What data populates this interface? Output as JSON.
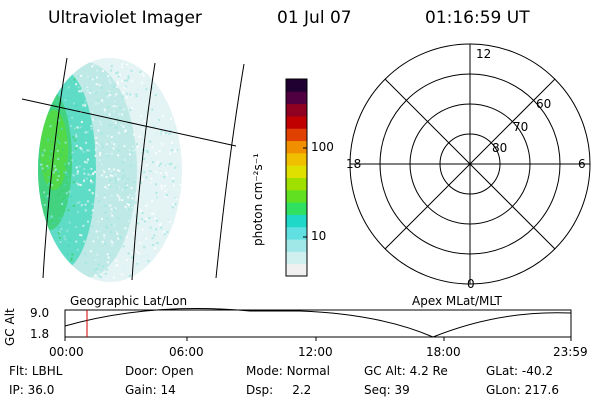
{
  "header": {
    "title": "Ultraviolet Imager",
    "date": "01 Jul 07",
    "time": "01:16:59 UT"
  },
  "colorbar": {
    "label": "photon cm⁻²s⁻¹",
    "ticks": [
      "100",
      "10"
    ],
    "colors": [
      "#f0f0f0",
      "#d0f0f0",
      "#a0e8e8",
      "#60e0e0",
      "#20d8c8",
      "#30e060",
      "#60e020",
      "#a0e000",
      "#e0e000",
      "#f0c000",
      "#f09000",
      "#e04000",
      "#c00000",
      "#900020",
      "#500040",
      "#200030"
    ]
  },
  "polar": {
    "clock_labels": [
      "12",
      "18",
      "6",
      "0"
    ],
    "lat_labels": [
      "60",
      "70",
      "80"
    ]
  },
  "panel_labels": {
    "left": "Geographic Lat/Lon",
    "right": "Apex MLat/MLT"
  },
  "timeline": {
    "ylabel": "GC Alt",
    "y_ticks": [
      "9.0",
      "1.8"
    ],
    "x_ticks": [
      "00:00",
      "06:00",
      "12:00",
      "18:00",
      "23:59"
    ],
    "cursor_color": "#d00000"
  },
  "info": {
    "row1": [
      {
        "label": "Flt:",
        "value": "LBHL"
      },
      {
        "label": "Door:",
        "value": "Open"
      },
      {
        "label": "Mode:",
        "value": "Normal"
      },
      {
        "label": "GC Alt:",
        "value": "4.2 Re"
      },
      {
        "label": "GLat:",
        "value": "-40.2"
      }
    ],
    "row2": [
      {
        "label": "IP:",
        "value": "36.0"
      },
      {
        "label": "Gain:",
        "value": "14"
      },
      {
        "label": "Dsp:",
        "value": "2.2"
      },
      {
        "label": "Seq:",
        "value": "39"
      },
      {
        "label": "GLon:",
        "value": "217.6"
      }
    ]
  }
}
